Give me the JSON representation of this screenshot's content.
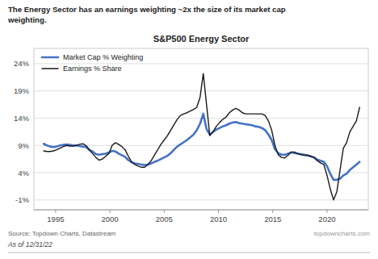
{
  "chart_data": {
    "type": "line",
    "title": "S&P500 Energy Sector",
    "subtitle": [
      "The Energy Sector has an earnings weighting ~2x the size of its market cap",
      "weighting."
    ],
    "annotations": [
      "Source: Topdown Charts, Datastream",
      "topdowncharts.com",
      "As of 12/31/22"
    ],
    "x": [
      1993.9,
      1994.2,
      1994.5,
      1994.8,
      1995.1,
      1995.4,
      1995.7,
      1996.0,
      1996.3,
      1996.6,
      1996.9,
      1997.2,
      1997.5,
      1997.8,
      1998.1,
      1998.4,
      1998.7,
      1999.0,
      1999.3,
      1999.6,
      1999.9,
      2000.2,
      2000.5,
      2000.8,
      2001.1,
      2001.4,
      2001.7,
      2002.0,
      2002.3,
      2002.6,
      2002.9,
      2003.2,
      2003.5,
      2003.8,
      2004.1,
      2004.4,
      2004.7,
      2005.0,
      2005.3,
      2005.6,
      2005.9,
      2006.2,
      2006.5,
      2006.8,
      2007.1,
      2007.4,
      2007.7,
      2008.0,
      2008.3,
      2008.6,
      2008.9,
      2009.2,
      2009.5,
      2009.8,
      2010.1,
      2010.4,
      2010.7,
      2011.0,
      2011.3,
      2011.6,
      2011.9,
      2012.2,
      2012.5,
      2012.8,
      2013.1,
      2013.4,
      2013.7,
      2014.0,
      2014.3,
      2014.6,
      2014.9,
      2015.2,
      2015.5,
      2015.8,
      2016.1,
      2016.4,
      2016.7,
      2017.0,
      2017.3,
      2017.6,
      2017.9,
      2018.2,
      2018.5,
      2018.8,
      2019.1,
      2019.4,
      2019.7,
      2020.0,
      2020.3,
      2020.6,
      2020.9,
      2021.2,
      2021.5,
      2021.8,
      2022.1,
      2022.4,
      2022.7,
      2023.0
    ],
    "series": [
      {
        "name": "Market Cap % Weighting",
        "color": "#4472C4",
        "values": [
          0.093,
          0.09,
          0.088,
          0.087,
          0.088,
          0.09,
          0.091,
          0.092,
          0.091,
          0.09,
          0.09,
          0.089,
          0.088,
          0.087,
          0.082,
          0.079,
          0.074,
          0.073,
          0.074,
          0.075,
          0.077,
          0.08,
          0.079,
          0.075,
          0.072,
          0.069,
          0.063,
          0.059,
          0.057,
          0.056,
          0.055,
          0.054,
          0.055,
          0.057,
          0.06,
          0.062,
          0.065,
          0.068,
          0.071,
          0.076,
          0.082,
          0.088,
          0.092,
          0.096,
          0.1,
          0.105,
          0.11,
          0.118,
          0.13,
          0.148,
          0.12,
          0.11,
          0.115,
          0.119,
          0.122,
          0.125,
          0.127,
          0.13,
          0.132,
          0.133,
          0.131,
          0.13,
          0.129,
          0.128,
          0.127,
          0.125,
          0.124,
          0.122,
          0.118,
          0.11,
          0.1,
          0.083,
          0.076,
          0.073,
          0.073,
          0.075,
          0.077,
          0.076,
          0.075,
          0.074,
          0.073,
          0.072,
          0.07,
          0.068,
          0.064,
          0.062,
          0.06,
          0.052,
          0.038,
          0.027,
          0.027,
          0.029,
          0.035,
          0.038,
          0.045,
          0.05,
          0.055,
          0.06
        ]
      },
      {
        "name": "Earnings % Share",
        "color": "#1a1a1a",
        "values": [
          0.08,
          0.079,
          0.079,
          0.08,
          0.082,
          0.085,
          0.088,
          0.09,
          0.089,
          0.089,
          0.09,
          0.092,
          0.093,
          0.09,
          0.082,
          0.075,
          0.068,
          0.063,
          0.065,
          0.07,
          0.075,
          0.09,
          0.095,
          0.092,
          0.088,
          0.082,
          0.07,
          0.06,
          0.055,
          0.052,
          0.05,
          0.05,
          0.055,
          0.062,
          0.072,
          0.082,
          0.092,
          0.1,
          0.108,
          0.118,
          0.128,
          0.138,
          0.145,
          0.148,
          0.15,
          0.153,
          0.156,
          0.16,
          0.178,
          0.222,
          0.165,
          0.108,
          0.115,
          0.125,
          0.132,
          0.138,
          0.142,
          0.15,
          0.155,
          0.158,
          0.155,
          0.15,
          0.148,
          0.148,
          0.148,
          0.148,
          0.148,
          0.148,
          0.145,
          0.135,
          0.118,
          0.09,
          0.073,
          0.068,
          0.067,
          0.072,
          0.078,
          0.078,
          0.075,
          0.073,
          0.072,
          0.072,
          0.07,
          0.068,
          0.062,
          0.058,
          0.055,
          0.035,
          0.01,
          -0.01,
          0.005,
          0.045,
          0.085,
          0.095,
          0.115,
          0.125,
          0.135,
          0.16
        ]
      }
    ],
    "xlim": [
      1993.0,
      2023.8
    ],
    "xticks": [
      1995,
      2000,
      2005,
      2010,
      2015,
      2020
    ],
    "ylim": [
      -0.028,
      0.268
    ],
    "yticks": [
      {
        "value": -0.01,
        "label": "-1%"
      },
      {
        "value": 0.04,
        "label": "4%"
      },
      {
        "value": 0.09,
        "label": "9%"
      },
      {
        "value": 0.14,
        "label": "14%"
      },
      {
        "value": 0.19,
        "label": "19%"
      },
      {
        "value": 0.24,
        "label": "24%"
      }
    ],
    "grid": true,
    "legend": "upper left"
  }
}
